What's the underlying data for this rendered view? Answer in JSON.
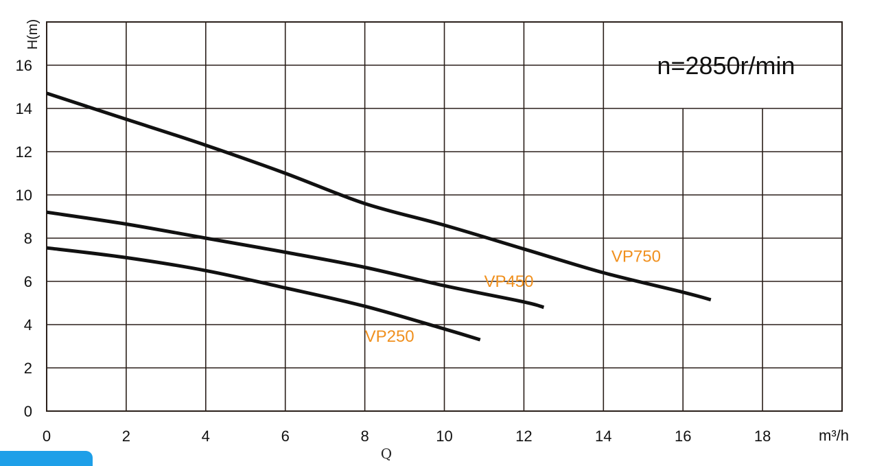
{
  "chart_data": {
    "type": "line",
    "title": "",
    "annotation": "n=2850r/min",
    "ylabel": "H(m)",
    "xunit": "m³/h",
    "xlabel": "Q",
    "xlim": [
      0,
      20
    ],
    "ylim": [
      0,
      18
    ],
    "x_ticks": [
      "0",
      "2",
      "4",
      "6",
      "8",
      "10",
      "12",
      "14",
      "16",
      "18"
    ],
    "y_ticks": [
      "0",
      "2",
      "4",
      "6",
      "8",
      "10",
      "12",
      "14",
      "16"
    ],
    "grid": true,
    "label_color": "#f0901e",
    "line_color": "#111111",
    "series": [
      {
        "name": "VP750",
        "label_at": [
          14.2,
          6.9
        ],
        "points": [
          [
            0,
            14.7
          ],
          [
            2,
            13.5
          ],
          [
            4,
            12.3
          ],
          [
            6,
            11.0
          ],
          [
            8,
            9.6
          ],
          [
            10,
            8.6
          ],
          [
            12,
            7.5
          ],
          [
            14,
            6.4
          ],
          [
            16,
            5.5
          ],
          [
            16.7,
            5.15
          ]
        ]
      },
      {
        "name": "VP450",
        "label_at": [
          11.0,
          5.75
        ],
        "points": [
          [
            0,
            9.2
          ],
          [
            2,
            8.65
          ],
          [
            4,
            8.0
          ],
          [
            6,
            7.35
          ],
          [
            8,
            6.65
          ],
          [
            10,
            5.8
          ],
          [
            12,
            5.05
          ],
          [
            12.5,
            4.8
          ]
        ]
      },
      {
        "name": "VP250",
        "label_at": [
          8.0,
          3.2
        ],
        "points": [
          [
            0,
            7.55
          ],
          [
            2,
            7.1
          ],
          [
            4,
            6.5
          ],
          [
            6,
            5.7
          ],
          [
            8,
            4.85
          ],
          [
            10,
            3.8
          ],
          [
            10.9,
            3.3
          ]
        ]
      }
    ]
  },
  "decor": {
    "corner_tab_color": "#1e9fe8"
  }
}
